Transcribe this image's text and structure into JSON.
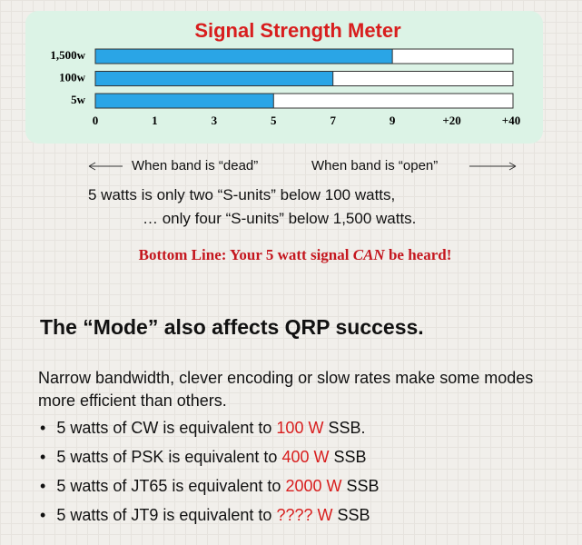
{
  "chart_data": {
    "type": "bar",
    "title": "Signal Strength Meter",
    "categories": [
      "1,500w",
      "100w",
      "5w"
    ],
    "values": [
      9,
      7,
      5
    ],
    "color": "#2aa5e6",
    "scale": [
      "0",
      "1",
      "3",
      "5",
      "7",
      "9",
      "+20",
      "+40"
    ]
  },
  "captions": {
    "left": "When band is “dead”",
    "right": "When band is “open”"
  },
  "body": [
    "5 watts is only two “S-units” below 100 watts,",
    "… only four “S-units” below 1,500 watts."
  ],
  "bottom_line": {
    "prefix": "Bottom Line: Your 5 watt signal ",
    "emphasis": "CAN",
    "suffix": " be heard!"
  },
  "heading": "The “Mode” also affects QRP success.",
  "intro": "Narrow bandwidth, clever encoding or slow rates make some modes more efficient than others.",
  "bullets": [
    {
      "text": "5 watts of CW is equivalent to ",
      "power": "100 W",
      "suffix": " SSB."
    },
    {
      "text": "5 watts of PSK is equivalent to ",
      "power": "400 W",
      "suffix": " SSB"
    },
    {
      "text": "5 watts of JT65 is equivalent to ",
      "power": "2000 W",
      "suffix": " SSB"
    },
    {
      "text": "5 watts of JT9 is equivalent to ",
      "power": "???? W",
      "suffix": " SSB"
    }
  ]
}
